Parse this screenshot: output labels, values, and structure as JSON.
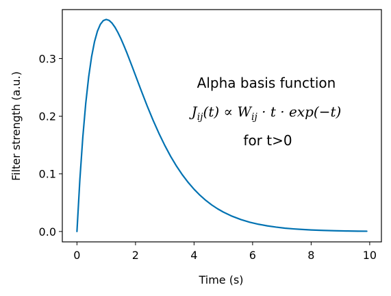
{
  "chart_data": {
    "type": "line",
    "title": "",
    "xlabel": "Time (s)",
    "ylabel": "Filter strength (a.u.)",
    "xlim": [
      -0.5,
      10.4
    ],
    "ylim": [
      -0.018,
      0.385
    ],
    "xticks": [
      0,
      2,
      4,
      6,
      8,
      10
    ],
    "yticks": [
      0.0,
      0.1,
      0.2,
      0.3
    ],
    "xtick_labels": [
      "0",
      "2",
      "4",
      "6",
      "8",
      "10"
    ],
    "ytick_labels": [
      "0.0",
      "0.1",
      "0.2",
      "0.3"
    ],
    "grid": false,
    "legend": "none",
    "series": [
      {
        "color": "#0072b2",
        "x": [
          0.0,
          0.1,
          0.2,
          0.3,
          0.4,
          0.5,
          0.6,
          0.7,
          0.8,
          0.9,
          1.0,
          1.1,
          1.2,
          1.3,
          1.4,
          1.5,
          1.6,
          1.7,
          1.8,
          1.9,
          2.0,
          2.2,
          2.4,
          2.6,
          2.8,
          3.0,
          3.2,
          3.4,
          3.6,
          3.8,
          4.0,
          4.2,
          4.4,
          4.6,
          4.8,
          5.0,
          5.3,
          5.6,
          5.9,
          6.2,
          6.5,
          6.8,
          7.1,
          7.4,
          7.7,
          8.0,
          8.4,
          8.8,
          9.2,
          9.6,
          9.9
        ],
        "y": [
          0.0,
          0.0905,
          0.1637,
          0.2222,
          0.2681,
          0.3033,
          0.3293,
          0.3476,
          0.3595,
          0.3659,
          0.3679,
          0.3662,
          0.3614,
          0.3543,
          0.3452,
          0.3347,
          0.323,
          0.3106,
          0.2975,
          0.2842,
          0.2707,
          0.2438,
          0.2177,
          0.1931,
          0.1703,
          0.1494,
          0.1304,
          0.1135,
          0.0984,
          0.0851,
          0.0733,
          0.063,
          0.054,
          0.0462,
          0.0395,
          0.0337,
          0.0265,
          0.0207,
          0.0161,
          0.0126,
          0.0098,
          0.0076,
          0.0058,
          0.0045,
          0.0035,
          0.0027,
          0.0019,
          0.0013,
          0.0009,
          0.0006,
          0.0005
        ]
      }
    ],
    "annotations": {
      "line1": "Alpha basis function",
      "line3": "for t>0",
      "formula": {
        "J": "J",
        "J_sub": "ij",
        "t1": "(t) ∝ ",
        "W": "W",
        "W_sub": "ij",
        "rest": " · t · exp(−t)"
      }
    }
  }
}
